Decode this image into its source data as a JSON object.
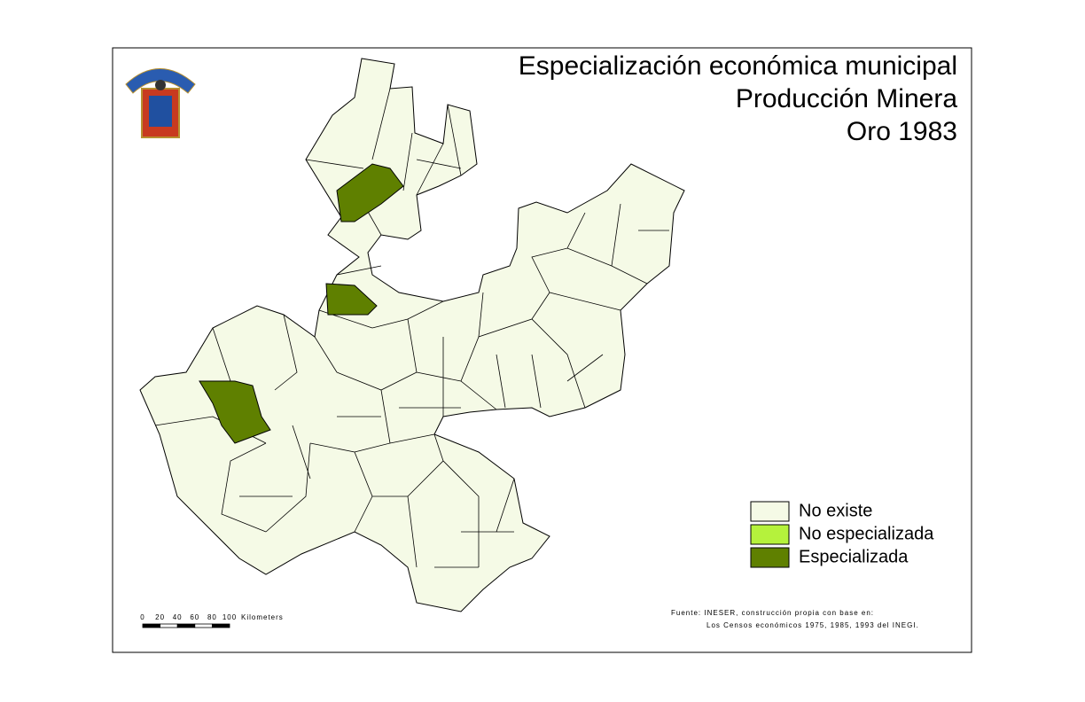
{
  "title": [
    "Especialización económica municipal",
    "Producción Minera",
    "Oro 1983"
  ],
  "legend": [
    {
      "label": "No existe",
      "color": "#f5fae6"
    },
    {
      "label": "No especializada",
      "color": "#b5f23c"
    },
    {
      "label": "Especializada",
      "color": "#5f8000"
    }
  ],
  "scale": {
    "ticks": [
      0,
      20,
      40,
      60,
      80,
      100
    ],
    "unit": "Kilometers"
  },
  "source": [
    "Fuente: INESER, construcción propia con base en:",
    "Los Censos económicos 1975, 1985, 1993 del INEGI."
  ]
}
